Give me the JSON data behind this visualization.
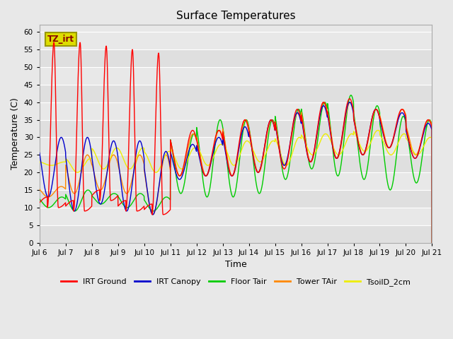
{
  "title": "Surface Temperatures",
  "xlabel": "Time",
  "ylabel": "Temperature (C)",
  "ylim": [
    0,
    62
  ],
  "yticks": [
    0,
    5,
    10,
    15,
    20,
    25,
    30,
    35,
    40,
    45,
    50,
    55,
    60
  ],
  "xtick_labels": [
    "Jul 6",
    "Jul 7",
    "Jul 8",
    "Jul 9",
    "Jul 10",
    "Jul 11",
    "Jul 12",
    "Jul 13",
    "Jul 14",
    "Jul 15",
    "Jul 16",
    "Jul 17",
    "Jul 18",
    "Jul 19",
    "Jul 20",
    "Jul 21"
  ],
  "series_colors": {
    "IRT Ground": "#ff0000",
    "IRT Canopy": "#0000cc",
    "Floor Tair": "#00cc00",
    "Tower TAir": "#ff8800",
    "TsoilD_2cm": "#eeee00"
  },
  "annotation_text": "TZ_irt",
  "annotation_bg": "#dddd00",
  "annotation_border": "#999900",
  "annotation_text_color": "#880000",
  "bg_color": "#e8e8e8",
  "plot_bg": "#e8e8e8",
  "grid_color": "#ffffff",
  "legend_items": [
    "IRT Ground",
    "IRT Canopy",
    "Floor Tair",
    "Tower TAir",
    "TsoilD_2cm"
  ]
}
